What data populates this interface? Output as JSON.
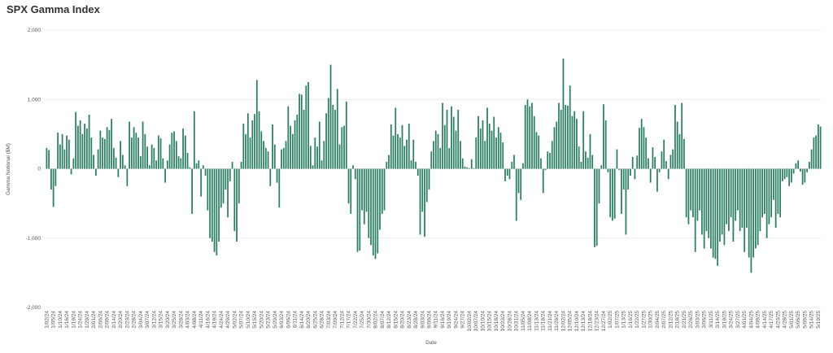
{
  "chart_data": {
    "type": "bar",
    "title": "SPX Gamma Index",
    "x_label": "Date",
    "y_label": "Gamma Notional ($M)",
    "color": "#2a7f62",
    "grid": true,
    "ylim": [
      -2000,
      2000
    ],
    "yticks": [
      {
        "value": -2000,
        "label": "-2,000"
      },
      {
        "value": -1000,
        "label": "-1,000"
      },
      0,
      {
        "value": 1000,
        "label": "1,000"
      },
      {
        "value": 2000,
        "label": "2,000"
      }
    ],
    "categories": [
      "1/02/24",
      null,
      null,
      "1/05/24",
      null,
      null,
      "1/10/24",
      null,
      null,
      "1/16/24",
      null,
      null,
      "1/19/24",
      null,
      null,
      "1/24/24",
      null,
      null,
      "1/29/24",
      null,
      null,
      "2/01/24",
      null,
      null,
      "2/06/24",
      null,
      null,
      "2/09/24",
      null,
      null,
      "2/14/24",
      null,
      null,
      "2/20/24",
      null,
      null,
      "2/23/24",
      null,
      null,
      "2/28/24",
      null,
      null,
      "3/04/24",
      null,
      null,
      "3/07/24",
      null,
      null,
      "3/12/24",
      null,
      null,
      "3/15/24",
      null,
      null,
      "3/20/24",
      null,
      null,
      "3/25/24",
      null,
      null,
      "3/28/24",
      null,
      null,
      "4/03/24",
      null,
      null,
      "4/08/24",
      null,
      null,
      "4/11/24",
      null,
      null,
      "4/16/24",
      null,
      null,
      "4/19/24",
      null,
      null,
      "4/24/24",
      null,
      null,
      "4/29/24",
      null,
      null,
      "5/02/24",
      null,
      null,
      "5/07/24",
      null,
      null,
      "5/10/24",
      null,
      null,
      "5/15/24",
      null,
      null,
      "5/20/24",
      null,
      null,
      "5/23/24",
      null,
      null,
      "5/29/24",
      null,
      null,
      "6/03/24",
      null,
      null,
      "6/06/24",
      null,
      null,
      "6/11/24",
      null,
      null,
      "6/14/24",
      null,
      null,
      "6/20/24",
      null,
      null,
      "6/25/24",
      null,
      null,
      "6/28/24",
      null,
      null,
      "7/03/24",
      null,
      null,
      "7/09/24",
      null,
      null,
      "7/12/24",
      null,
      null,
      "7/17/24",
      null,
      null,
      "7/22/24",
      null,
      null,
      "7/25/24",
      null,
      null,
      "7/30/24",
      null,
      null,
      "8/02/24",
      null,
      null,
      "8/07/24",
      null,
      null,
      "8/12/24",
      null,
      null,
      "8/15/24",
      null,
      null,
      "8/20/24",
      null,
      null,
      "8/23/24",
      null,
      null,
      "8/28/24",
      null,
      null,
      "9/03/24",
      null,
      null,
      "9/06/24",
      null,
      null,
      "9/11/24",
      null,
      null,
      "9/16/24",
      null,
      null,
      "9/19/24",
      null,
      null,
      "9/24/24",
      null,
      null,
      "9/27/24",
      null,
      null,
      "10/02/24",
      null,
      null,
      "10/07/24",
      null,
      null,
      "10/10/24",
      null,
      null,
      "10/15/24",
      null,
      null,
      "10/18/24",
      null,
      null,
      "10/23/24",
      null,
      null,
      "10/28/24",
      null,
      null,
      "10/31/24",
      null,
      null,
      "11/05/24",
      null,
      null,
      "11/08/24",
      null,
      null,
      "11/13/24",
      null,
      null,
      "11/18/24",
      null,
      null,
      "11/21/24",
      null,
      null,
      "11/26/24",
      null,
      null,
      "12/02/24",
      null,
      null,
      "12/05/24",
      null,
      null,
      "12/10/24",
      null,
      null,
      "12/13/24",
      null,
      null,
      "12/18/24",
      null,
      null,
      "12/23/24",
      null,
      null,
      "12/27/24",
      null,
      null,
      "1/02/25",
      null,
      null,
      "1/07/25",
      null,
      null,
      "1/13/25",
      null,
      null,
      "1/16/25",
      null,
      null,
      "1/22/25",
      null,
      null,
      "1/27/25",
      null,
      null,
      "1/30/25",
      null,
      null,
      "2/04/25",
      null,
      null,
      "2/07/25",
      null,
      null,
      "2/12/25",
      null,
      null,
      "2/18/25",
      null,
      null,
      "2/21/25",
      null,
      null,
      "2/26/25",
      null,
      null,
      "3/03/25",
      null,
      null,
      "3/06/25",
      null,
      null,
      "3/11/25",
      null,
      null,
      "3/14/25",
      null,
      null,
      "3/19/25",
      null,
      null,
      "3/24/25",
      null,
      null,
      "3/27/25",
      null,
      null,
      "4/01/25",
      null,
      null,
      "4/04/25",
      null,
      null,
      "4/09/25",
      null,
      null,
      "4/14/25",
      null,
      null,
      "4/17/25",
      null,
      null,
      "4/23/25",
      null,
      null,
      "4/28/25",
      null,
      null,
      "5/01/25",
      null,
      null,
      "5/06/25",
      null,
      null,
      "5/09/25",
      null,
      null,
      "5/14/25",
      null,
      null,
      "5/19/25",
      null
    ],
    "values": [
      300,
      270,
      -300,
      -550,
      -250,
      520,
      350,
      500,
      280,
      480,
      420,
      -80,
      150,
      820,
      620,
      700,
      500,
      650,
      580,
      780,
      450,
      200,
      -100,
      280,
      550,
      450,
      430,
      600,
      560,
      720,
      300,
      160,
      -120,
      400,
      200,
      50,
      -250,
      680,
      450,
      600,
      520,
      450,
      180,
      680,
      500,
      320,
      50,
      350,
      300,
      120,
      480,
      440,
      150,
      -200,
      120,
      350,
      520,
      540,
      400,
      180,
      150,
      580,
      480,
      230,
      20,
      -650,
      830,
      80,
      120,
      -400,
      50,
      -100,
      -600,
      -1000,
      -1050,
      -1200,
      -1250,
      -1050,
      -560,
      -500,
      -300,
      -700,
      -180,
      100,
      -900,
      -1050,
      -500,
      100,
      650,
      500,
      800,
      450,
      700,
      790,
      1280,
      830,
      540,
      400,
      300,
      250,
      -250,
      640,
      350,
      -200,
      -560,
      280,
      300,
      400,
      900,
      620,
      500,
      700,
      780,
      1080,
      1070,
      850,
      1200,
      1250,
      330,
      50,
      450,
      320,
      680,
      120,
      400,
      800,
      1020,
      1500,
      920,
      850,
      1150,
      350,
      600,
      620,
      970,
      -500,
      -650,
      50,
      -150,
      -1200,
      -1180,
      -600,
      -800,
      -620,
      -1000,
      -1100,
      -1250,
      -1300,
      -1220,
      -880,
      -650,
      -600,
      100,
      200,
      640,
      480,
      880,
      500,
      450,
      630,
      330,
      420,
      650,
      120,
      420,
      100,
      -100,
      -950,
      -620,
      -980,
      -480,
      -300,
      250,
      400,
      550,
      500,
      300,
      950,
      630,
      850,
      300,
      900,
      750,
      550,
      850,
      400,
      150,
      30,
      20,
      10,
      140,
      10,
      450,
      760,
      580,
      700,
      400,
      880,
      650,
      550,
      750,
      450,
      600,
      520,
      380,
      -180,
      -100,
      -150,
      100,
      200,
      -750,
      -350,
      -450,
      80,
      920,
      1000,
      900,
      950,
      760,
      530,
      480,
      150,
      -350,
      -20,
      250,
      230,
      400,
      600,
      680,
      950,
      850,
      1590,
      920,
      910,
      1200,
      760,
      830,
      720,
      320,
      100,
      830,
      250,
      160,
      500,
      200,
      -1130,
      -1110,
      -500,
      50,
      930,
      700,
      -50,
      -700,
      -750,
      -720,
      280,
      -20,
      -650,
      -300,
      -950,
      -300,
      -100,
      170,
      -150,
      190,
      590,
      720,
      600,
      450,
      150,
      -200,
      310,
      170,
      -330,
      -50,
      250,
      420,
      110,
      -150,
      200,
      280,
      920,
      680,
      500,
      950,
      430,
      -700,
      -800,
      -600,
      -700,
      -1200,
      -750,
      -600,
      -950,
      -1150,
      -900,
      -1000,
      -1150,
      -1280,
      -1300,
      -1400,
      -1050,
      -950,
      -1100,
      -800,
      -900,
      -700,
      -1050,
      -750,
      -600,
      -900,
      -850,
      -1200,
      -850,
      -1280,
      -1500,
      -1280,
      -1150,
      -1100,
      -900,
      -700,
      -650,
      -1000,
      -800,
      -700,
      -450,
      -850,
      -650,
      -700,
      -180,
      -150,
      -120,
      -250,
      -200,
      -70,
      80,
      120,
      -40,
      -230,
      -200,
      -50,
      100,
      280,
      450,
      480,
      640,
      610
    ]
  }
}
